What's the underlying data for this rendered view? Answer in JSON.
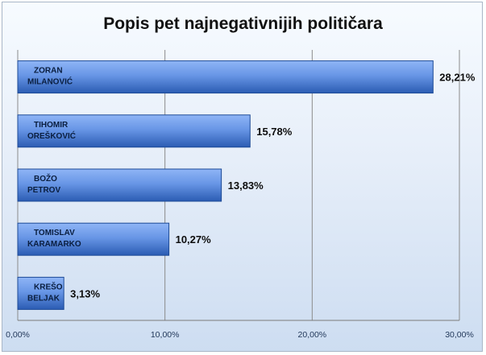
{
  "chart_data": {
    "type": "bar",
    "orientation": "horizontal",
    "title": "Popis pet najnegativnijih političara",
    "categories": [
      [
        "ZORAN",
        "MILANOVIĆ"
      ],
      [
        "TIHOMIR",
        "OREŠKOVIĆ"
      ],
      [
        "BOŽO",
        "PETROV"
      ],
      [
        "TOMISLAV",
        "KARAMARKO"
      ],
      [
        "KREŠO",
        "BELJAK"
      ]
    ],
    "values": [
      28.21,
      15.78,
      13.83,
      10.27,
      3.13
    ],
    "value_labels": [
      "28,21%",
      "15,78%",
      "13,83%",
      "10,27%",
      "3,13%"
    ],
    "x_ticks": [
      0,
      10,
      20,
      30
    ],
    "x_tick_labels": [
      "0,00%",
      "10,00%",
      "20,00%",
      "30,00%"
    ],
    "xlim": [
      0,
      30
    ],
    "grid": "vertical",
    "legend": "none",
    "colors": {
      "bar_light": "#6f9ff0",
      "bar_dark": "#2152a8",
      "grid": "#8b8b8b"
    }
  }
}
